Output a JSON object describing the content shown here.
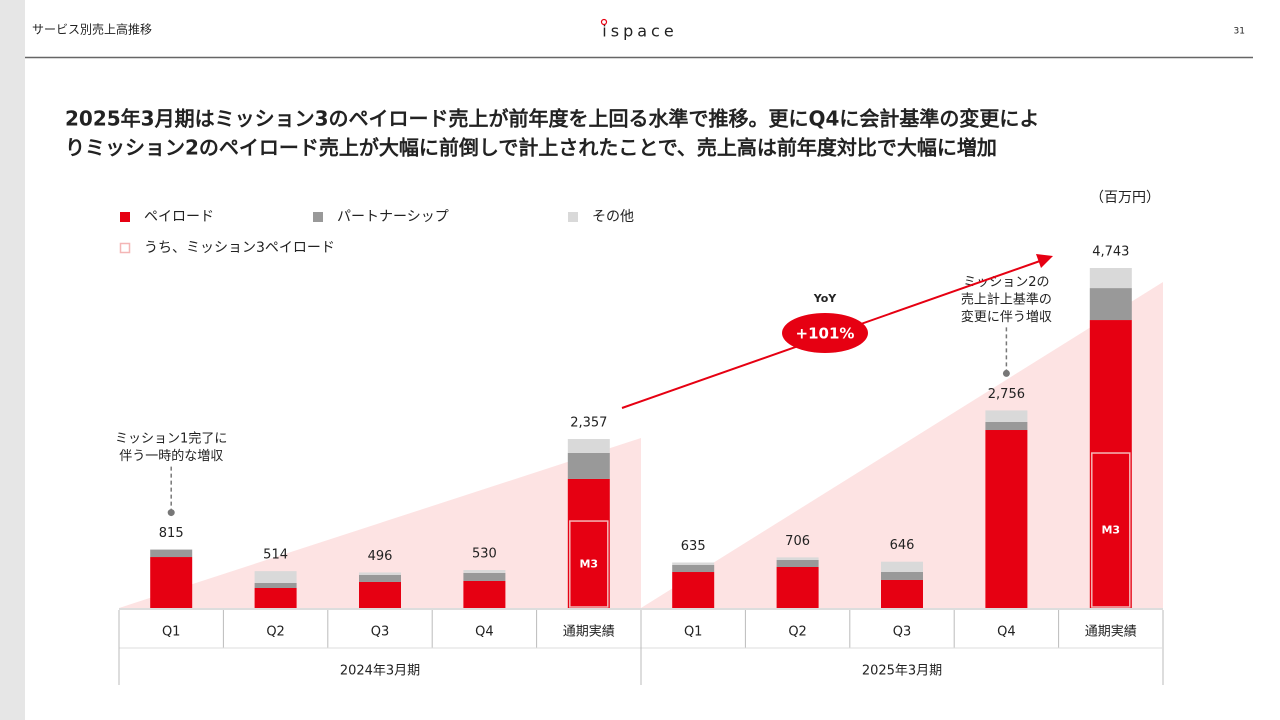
{
  "header": {
    "section": "サービス別売上高推移",
    "logo": "ispace",
    "page": "31"
  },
  "headline": [
    "2025年3月期はミッション3のペイロード売上が前年度を上回る水準で推移。更にQ4に会計基準の変更によ",
    "りミッション2のペイロード売上が大幅に前倒しで計上されたことで、売上高は前年度対比で大幅に増加"
  ],
  "chart_data": {
    "type": "bar",
    "stacked": true,
    "unit": "（百万円）",
    "categories": [
      "Q1",
      "Q2",
      "Q3",
      "Q4",
      "通期実績",
      "Q1",
      "Q2",
      "Q3",
      "Q4",
      "通期実績"
    ],
    "groups": [
      {
        "name": "2024年3月期",
        "size": 5
      },
      {
        "name": "2025年3月期",
        "size": 5
      }
    ],
    "series": [
      {
        "name": "ペイロード",
        "color": "#e60012",
        "values": [
          711,
          279,
          363,
          377,
          1800,
          502,
          572,
          391,
          2483,
          4017
        ]
      },
      {
        "name": "パートナーシップ",
        "color": "#999999",
        "values": [
          104,
          70,
          98,
          112,
          363,
          98,
          98,
          112,
          112,
          446
        ]
      },
      {
        "name": "その他",
        "color": "#d9d9d9",
        "values": [
          0,
          165,
          35,
          41,
          194,
          35,
          36,
          143,
          161,
          280
        ]
      },
      {
        "name": "うち、ミッション3ペイロード",
        "color": "#f4b6b6",
        "overlay": true,
        "label": "M3",
        "values": [
          null,
          null,
          null,
          null,
          1213,
          null,
          null,
          null,
          null,
          2162
        ]
      }
    ],
    "totals": {
      "values": [
        815,
        514,
        496,
        530,
        2357,
        635,
        706,
        646,
        2756,
        4743
      ],
      "value_labels": [
        "815",
        "514",
        "496",
        "530",
        "2,357",
        "635",
        "706",
        "646",
        "2,756",
        "4,743"
      ]
    },
    "annotations": [
      {
        "lines": [
          "ミッション1完了に",
          "伴う一時的な増収"
        ],
        "category": 0
      },
      {
        "lines": [
          "ミッション2の",
          "売上計上基準の",
          "変更に伴う増収"
        ],
        "category": 8
      }
    ],
    "growth": {
      "label": "YoY",
      "value_label": "+101%"
    }
  }
}
